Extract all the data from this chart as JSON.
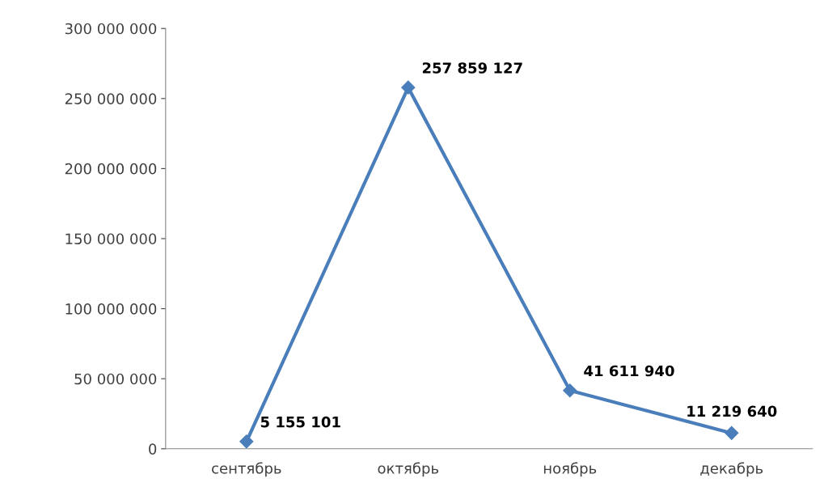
{
  "chart_data": {
    "type": "line",
    "categories": [
      "сентябрь",
      "октябрь",
      "ноябрь",
      "декабрь"
    ],
    "series": [
      {
        "color": "#4a7ebb",
        "values": [
          5155101,
          257859127,
          41611940,
          11219640
        ],
        "value_labels": [
          "5 155 101",
          "257 859 127",
          "41 611 940",
          "11 219 640"
        ]
      }
    ],
    "ylim": [
      0,
      300000000
    ],
    "yticks": [
      {
        "value": 0,
        "label": "0"
      },
      {
        "value": 50000000,
        "label": "50 000 000"
      },
      {
        "value": 100000000,
        "label": "100 000 000"
      },
      {
        "value": 150000000,
        "label": "150 000 000"
      },
      {
        "value": 200000000,
        "label": "200 000 000"
      },
      {
        "value": 250000000,
        "label": "250 000 000"
      },
      {
        "value": 300000000,
        "label": "300 000 000"
      }
    ],
    "grid": false,
    "marker": "diamond",
    "line_style": "solid"
  }
}
